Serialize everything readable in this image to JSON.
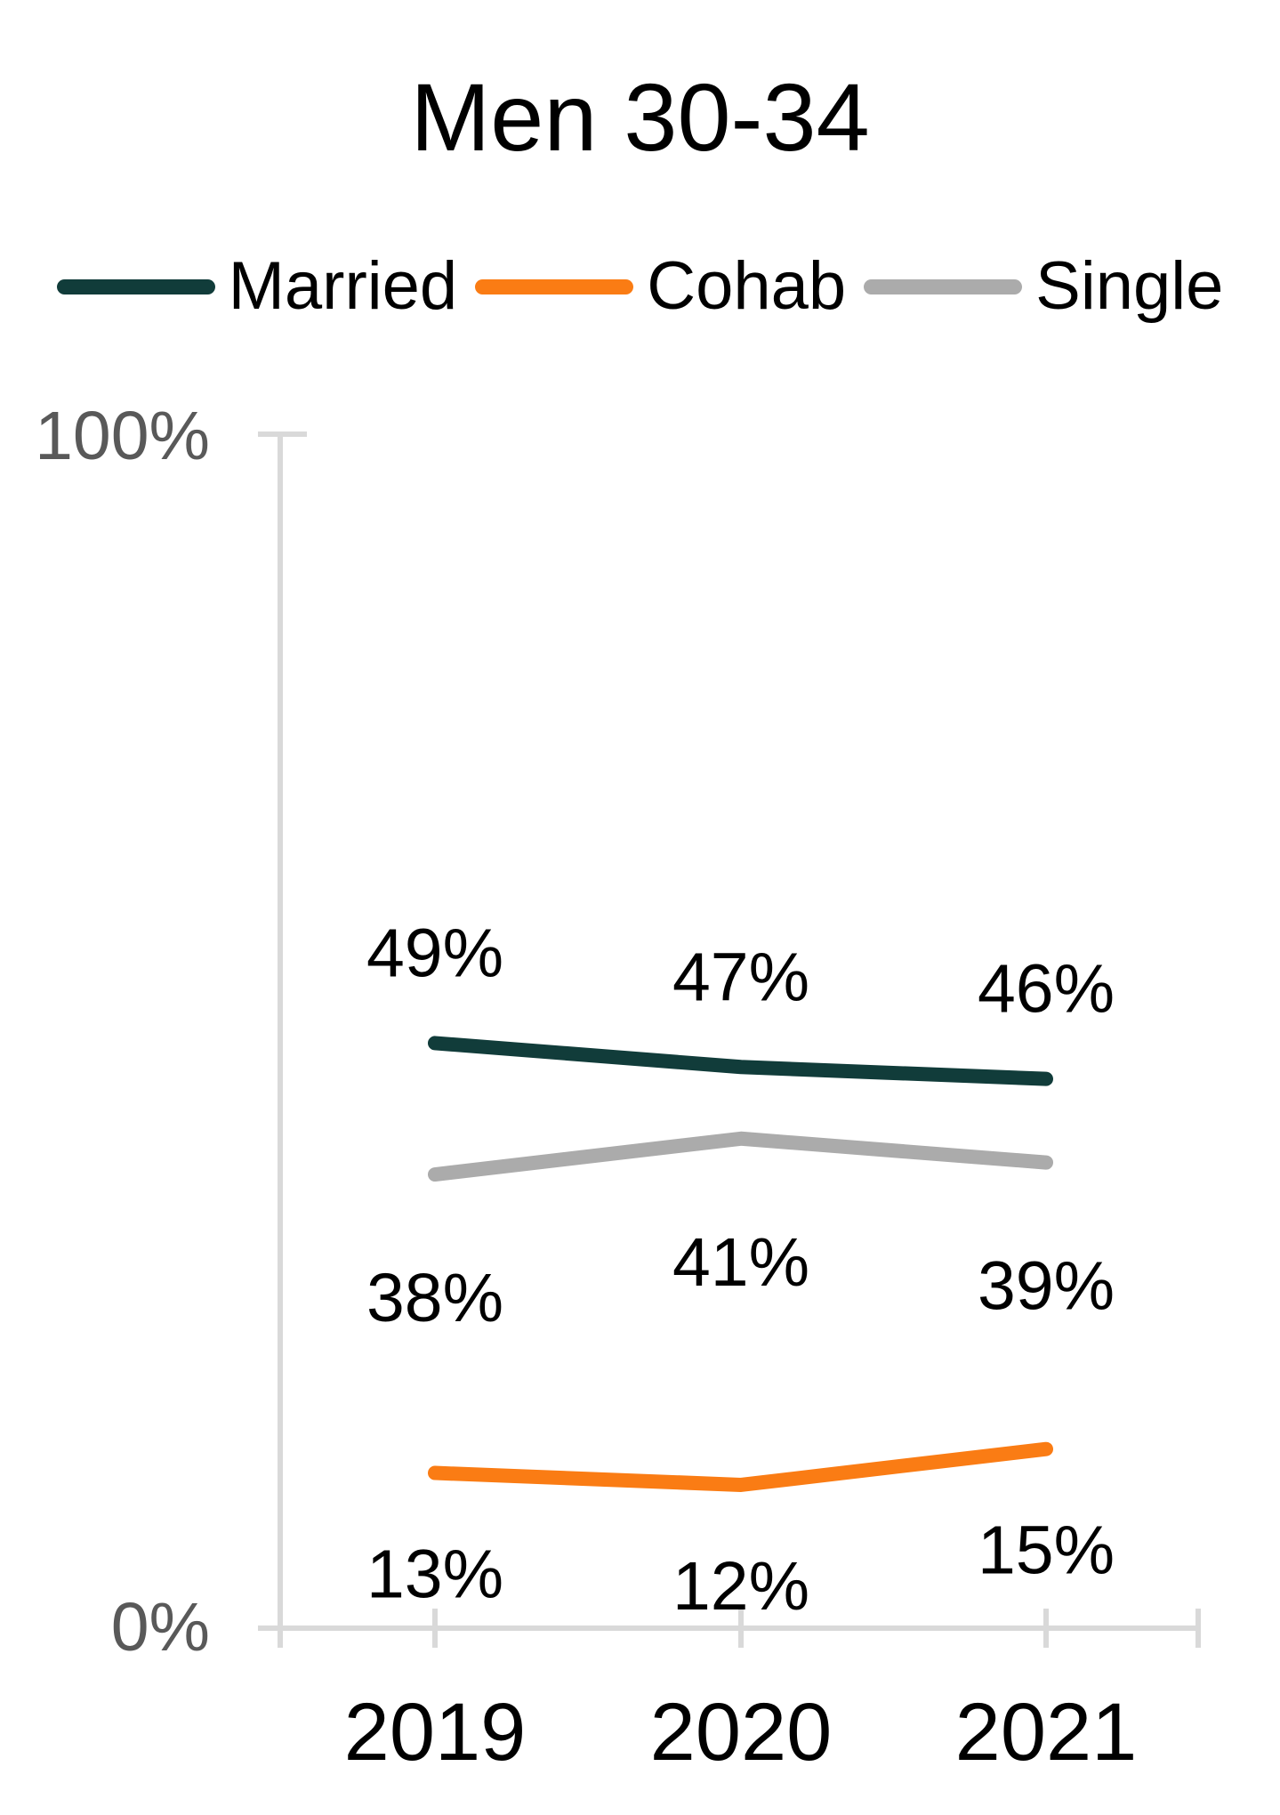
{
  "title": "Men 30-34",
  "chart_data": {
    "type": "line",
    "title": "Men 30-34",
    "x": [
      "2019",
      "2020",
      "2021"
    ],
    "series": [
      {
        "name": "Married",
        "values": [
          49,
          47,
          46
        ],
        "color": "#113c3a",
        "label_position": "above"
      },
      {
        "name": "Cohab",
        "values": [
          13,
          12,
          15
        ],
        "color": "#fa7c14",
        "label_position": "below"
      },
      {
        "name": "Single",
        "values": [
          38,
          41,
          39
        ],
        "color": "#ababab",
        "label_position": "below"
      }
    ],
    "ylim": [
      0,
      100
    ],
    "y_tick_labels": [
      "0%",
      "100%"
    ],
    "value_suffix": "%",
    "gridlines": false,
    "legend_position": "top",
    "axis_color": "#d9d9d9",
    "tick_label_color": "#595959",
    "data_label_color": "#000000"
  }
}
